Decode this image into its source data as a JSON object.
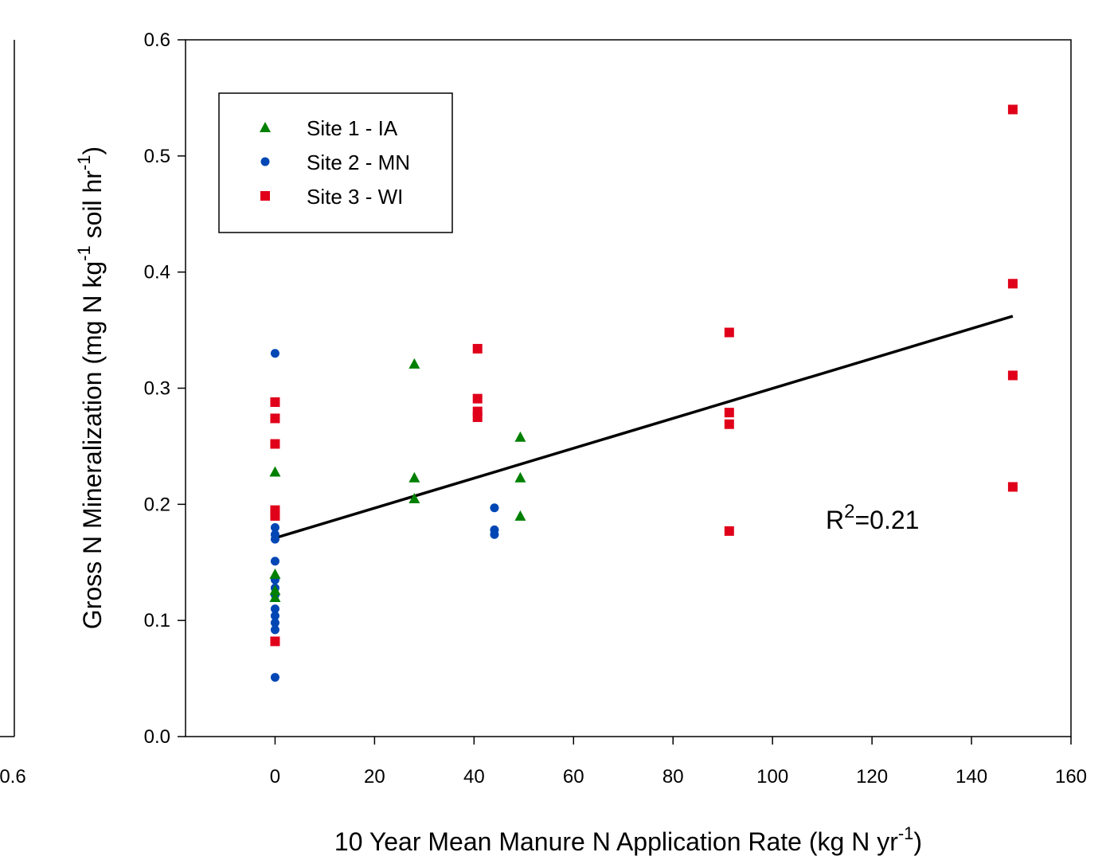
{
  "chart_data": {
    "type": "scatter",
    "xlabel": "10 Year Mean Manure N Application Rate (kg N yr",
    "xlabel_sup": "-1",
    "xlabel_tail": ")",
    "ylabel_parts": [
      "Gross N Mineralization (mg N kg",
      "-1",
      " soil hr",
      "-1",
      ")"
    ],
    "xlim": [
      -18,
      160
    ],
    "ylim": [
      0,
      0.6
    ],
    "x_ticks": [
      "0",
      "20",
      "40",
      "60",
      "80",
      "100",
      "120",
      "140",
      "160"
    ],
    "x_tick_values": [
      0,
      20,
      40,
      60,
      80,
      100,
      120,
      140,
      160
    ],
    "y_ticks": [
      "0.0",
      "0.1",
      "0.2",
      "0.3",
      "0.4",
      "0.5",
      "0.6"
    ],
    "y_tick_values": [
      0,
      0.1,
      0.2,
      0.3,
      0.4,
      0.5,
      0.6
    ],
    "left_panel_tick": "0.6",
    "annotation": {
      "base": "R",
      "sup": "2",
      "tail": "=0.21"
    },
    "legend_position": "top-left",
    "series": [
      {
        "name": "Site 1 - IA",
        "marker": "triangle",
        "color": "#008000",
        "points": [
          [
            0,
            0.228
          ],
          [
            0,
            0.14
          ],
          [
            0,
            0.126
          ],
          [
            0,
            0.12
          ],
          [
            28,
            0.321
          ],
          [
            28,
            0.223
          ],
          [
            28,
            0.205
          ],
          [
            49.3,
            0.258
          ],
          [
            49.3,
            0.223
          ],
          [
            49.3,
            0.19
          ]
        ]
      },
      {
        "name": "Site 2 - MN",
        "marker": "circle",
        "color": "#0046b4",
        "points": [
          [
            0,
            0.33
          ],
          [
            0,
            0.18
          ],
          [
            0,
            0.174
          ],
          [
            0,
            0.17
          ],
          [
            0,
            0.151
          ],
          [
            0,
            0.135
          ],
          [
            0,
            0.128
          ],
          [
            0,
            0.122
          ],
          [
            0,
            0.11
          ],
          [
            0,
            0.104
          ],
          [
            0,
            0.098
          ],
          [
            0,
            0.092
          ],
          [
            0,
            0.051
          ],
          [
            44.1,
            0.197
          ],
          [
            44.1,
            0.178
          ],
          [
            44.1,
            0.174
          ]
        ]
      },
      {
        "name": "Site 3 - WI",
        "marker": "square",
        "color": "#e0001a",
        "points": [
          [
            0,
            0.288
          ],
          [
            0,
            0.274
          ],
          [
            0,
            0.252
          ],
          [
            0,
            0.195
          ],
          [
            0,
            0.19
          ],
          [
            0,
            0.082
          ],
          [
            40.7,
            0.334
          ],
          [
            40.7,
            0.291
          ],
          [
            40.7,
            0.28
          ],
          [
            40.7,
            0.275
          ],
          [
            91.3,
            0.348
          ],
          [
            91.3,
            0.279
          ],
          [
            91.3,
            0.269
          ],
          [
            91.3,
            0.177
          ],
          [
            148.3,
            0.54
          ],
          [
            148.3,
            0.39
          ],
          [
            148.3,
            0.311
          ],
          [
            148.3,
            0.215
          ]
        ]
      }
    ],
    "fit_line": {
      "x": [
        0,
        148.3
      ],
      "y": [
        0.171,
        0.362
      ],
      "color": "#000000"
    }
  }
}
